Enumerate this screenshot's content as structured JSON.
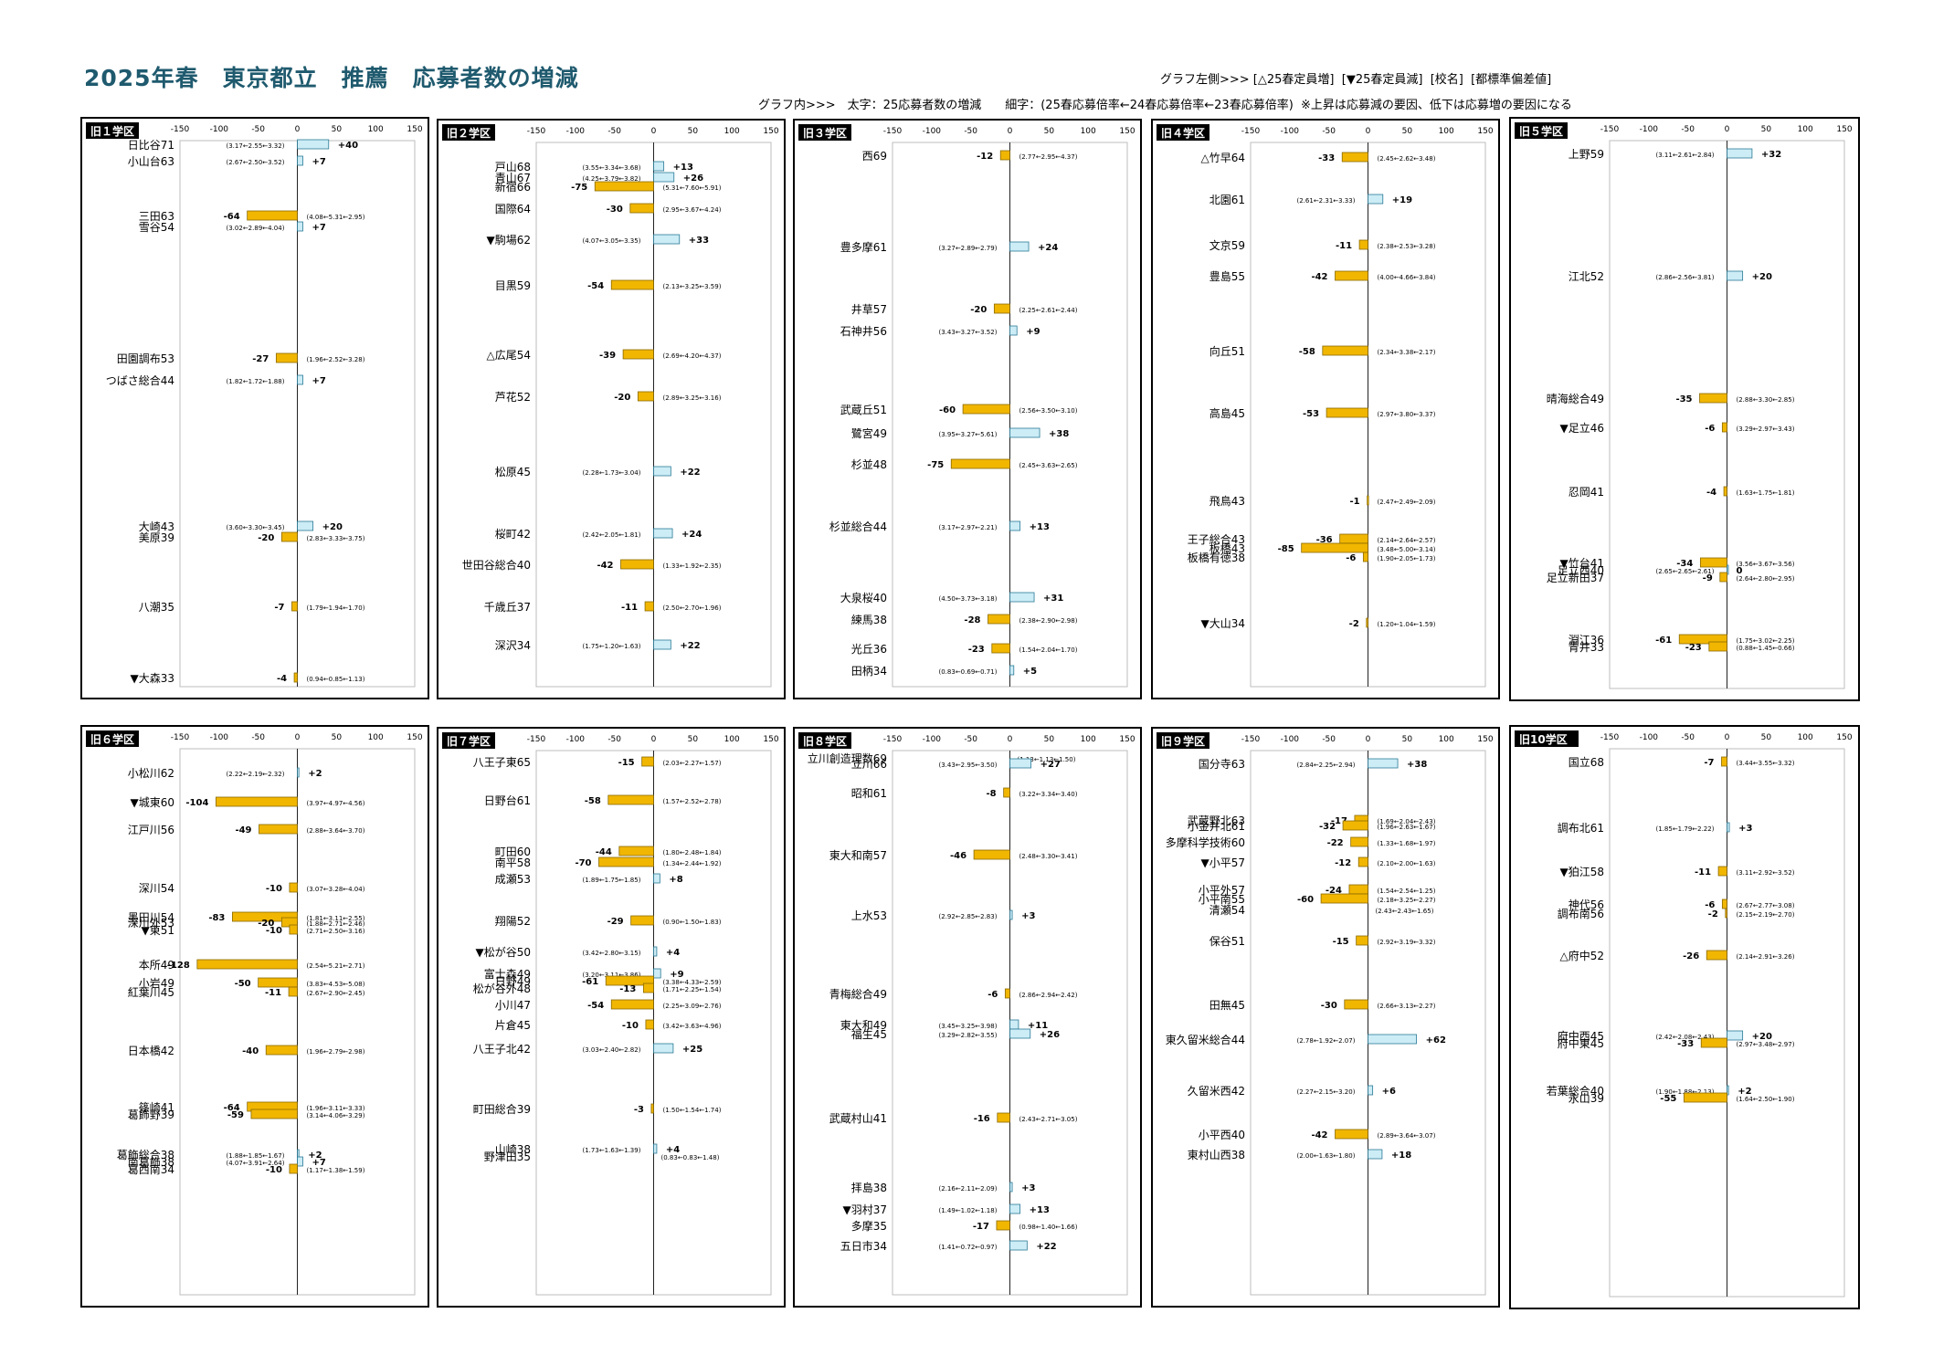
{
  "page": {
    "title": "2025年春　東京都立　推薦　応募者数の増減",
    "legend_line1": "グラフ左側>>> [△25春定員増]  [▼25春定員減]  [校名]  [都標準偏差値]",
    "legend_line2": "グラフ内>>>　太字：25応募者数の増減　　細字：(25春応募倍率←24春応募倍率←23春応募倍率)  ※上昇は応募減の要因、低下は応募増の要因になる"
  },
  "colors": {
    "increase": "#ccecf6",
    "decrease": "#f1b600",
    "border": "#000000"
  },
  "chart_data": {
    "type": "bar",
    "xlim": [
      -150,
      150
    ],
    "ticks": [
      -150,
      -100,
      -50,
      0,
      50,
      100,
      150
    ],
    "panels": [
      {
        "district": "旧１学区",
        "schools": [
          {
            "name": "日比谷71",
            "value": 40,
            "ratio": "(3.17←2.55←3.32)"
          },
          {
            "name": "小山台63",
            "value": 7,
            "ratio": "(2.67←2.50←3.52)"
          },
          {
            "name": "三田63",
            "value": -64,
            "ratio": "(4.08←5.31←2.95)"
          },
          {
            "name": "雪谷54",
            "value": 7,
            "ratio": "(3.02←2.89←4.04)"
          },
          {
            "name": "田園調布53",
            "value": -27,
            "ratio": "(1.96←2.52←3.28)"
          },
          {
            "name": "つばさ総合44",
            "value": 7,
            "ratio": "(1.82←1.72←1.88)"
          },
          {
            "name": "大崎43",
            "value": 20,
            "ratio": "(3.60←3.30←3.45)"
          },
          {
            "name": "美原39",
            "value": -20,
            "ratio": "(2.83←3.33←3.75)"
          },
          {
            "name": "八潮35",
            "value": -7,
            "ratio": "(1.79←1.94←1.70)"
          },
          {
            "name": "▼大森33",
            "value": -4,
            "ratio": "(0.94←0.85←1.13)"
          }
        ]
      },
      {
        "district": "旧２学区",
        "schools": [
          {
            "name": "戸山68",
            "value": 13,
            "ratio": "(3.55←3.34←3.68)"
          },
          {
            "name": "青山67",
            "value": 26,
            "ratio": "(4.25←3.79←3.82)"
          },
          {
            "name": "新宿66",
            "value": -75,
            "ratio": "(5.31←7.60←5.91)"
          },
          {
            "name": "国際64",
            "value": -30,
            "ratio": "(2.95←3.67←4.24)"
          },
          {
            "name": "▼駒場62",
            "value": 33,
            "ratio": "(4.07←3.05←3.35)"
          },
          {
            "name": "目黒59",
            "value": -54,
            "ratio": "(2.13←3.25←3.59)"
          },
          {
            "name": "△広尾54",
            "value": -39,
            "ratio": "(2.69←4.20←4.37)"
          },
          {
            "name": "芦花52",
            "value": -20,
            "ratio": "(2.89←3.25←3.16)"
          },
          {
            "name": "松原45",
            "value": 22,
            "ratio": "(2.28←1.73←3.04)"
          },
          {
            "name": "桜町42",
            "value": 24,
            "ratio": "(2.42←2.05←1.81)"
          },
          {
            "name": "世田谷総合40",
            "value": -42,
            "ratio": "(1.33←1.92←2.35)"
          },
          {
            "name": "千歳丘37",
            "value": -11,
            "ratio": "(2.50←2.70←1.96)"
          },
          {
            "name": "深沢34",
            "value": 22,
            "ratio": "(1.75←1.20←1.63)"
          }
        ]
      },
      {
        "district": "旧３学区",
        "schools": [
          {
            "name": "西69",
            "value": -12,
            "ratio": "(2.77←2.95←4.37)"
          },
          {
            "name": "豊多摩61",
            "value": 24,
            "ratio": "(3.27←2.89←2.79)"
          },
          {
            "name": "井草57",
            "value": -20,
            "ratio": "(2.25←2.61←2.44)"
          },
          {
            "name": "石神井56",
            "value": 9,
            "ratio": "(3.43←3.27←3.52)"
          },
          {
            "name": "武蔵丘51",
            "value": -60,
            "ratio": "(2.56←3.50←3.10)"
          },
          {
            "name": "鷺宮49",
            "value": 38,
            "ratio": "(3.95←3.27←5.61)"
          },
          {
            "name": "杉並48",
            "value": -75,
            "ratio": "(2.45←3.63←2.65)"
          },
          {
            "name": "杉並総合44",
            "value": 13,
            "ratio": "(3.17←2.97←2.21)"
          },
          {
            "name": "大泉桜40",
            "value": 31,
            "ratio": "(4.50←3.73←3.18)"
          },
          {
            "name": "練馬38",
            "value": -28,
            "ratio": "(2.38←2.90←2.98)"
          },
          {
            "name": "光丘36",
            "value": -23,
            "ratio": "(1.54←2.04←1.70)"
          },
          {
            "name": "田柄34",
            "value": 5,
            "ratio": "(0.83←0.69←0.71)"
          }
        ]
      },
      {
        "district": "旧４学区",
        "schools": [
          {
            "name": "△竹早64",
            "value": -33,
            "ratio": "(2.45←2.62←3.48)"
          },
          {
            "name": "北園61",
            "value": 19,
            "ratio": "(2.61←2.31←3.33)"
          },
          {
            "name": "文京59",
            "value": -11,
            "ratio": "(2.38←2.53←3.28)"
          },
          {
            "name": "豊島55",
            "value": -42,
            "ratio": "(4.00←4.66←3.84)"
          },
          {
            "name": "向丘51",
            "value": -58,
            "ratio": "(2.34←3.38←2.17)"
          },
          {
            "name": "高島45",
            "value": -53,
            "ratio": "(2.97←3.80←3.37)"
          },
          {
            "name": "飛鳥43",
            "value": -1,
            "ratio": "(2.47←2.49←2.09)"
          },
          {
            "name": "王子総合43",
            "value": -36,
            "ratio": "(2.14←2.64←2.57)"
          },
          {
            "name": "板橋43",
            "value": -85,
            "ratio": "(3.48←5.00←3.14)"
          },
          {
            "name": "板橋有徳38",
            "value": -6,
            "ratio": "(1.90←2.05←1.73)"
          },
          {
            "name": "▼大山34",
            "value": -2,
            "ratio": "(1.20←1.04←1.59)"
          }
        ]
      },
      {
        "district": "旧５学区",
        "schools": [
          {
            "name": "上野59",
            "value": 32,
            "ratio": "(3.11←2.61←2.84)"
          },
          {
            "name": "江北52",
            "value": 20,
            "ratio": "(2.86←2.56←3.81)"
          },
          {
            "name": "晴海総合49",
            "value": -35,
            "ratio": "(2.88←3.30←2.85)"
          },
          {
            "name": "▼足立46",
            "value": -6,
            "ratio": "(3.29←2.97←3.43)"
          },
          {
            "name": "忍岡41",
            "value": -4,
            "ratio": "(1.63←1.75←1.81)"
          },
          {
            "name": "▼竹台41",
            "value": -34,
            "ratio": "(3.56←3.67←3.56)"
          },
          {
            "name": "足立西40",
            "value": 0,
            "ratio": "(2.65←2.65←2.61)"
          },
          {
            "name": "足立新田37",
            "value": -9,
            "ratio": "(2.64←2.80←2.95)"
          },
          {
            "name": "淵江36",
            "value": -61,
            "ratio": "(1.75←3.02←2.25)"
          },
          {
            "name": "青井33",
            "value": -23,
            "ratio": "(0.88←1.45←0.66)"
          }
        ]
      },
      {
        "district": "旧６学区",
        "schools": [
          {
            "name": "小松川62",
            "value": 2,
            "ratio": "(2.22←2.19←2.32)"
          },
          {
            "name": "▼城東60",
            "value": -104,
            "ratio": "(3.97←4.97←4.56)"
          },
          {
            "name": "江戸川56",
            "value": -49,
            "ratio": "(2.88←3.64←3.70)"
          },
          {
            "name": "深川54",
            "value": -10,
            "ratio": "(3.07←3.28←4.04)"
          },
          {
            "name": "墨田川54",
            "value": -83,
            "ratio": "(1.81←3.11←2.55)"
          },
          {
            "name": "深川外53",
            "value": -20,
            "ratio": "(1.88←2.71←2.46)"
          },
          {
            "name": "▼東51",
            "value": -10,
            "ratio": "(2.71←2.50←3.16)"
          },
          {
            "name": "本所49",
            "value": -128,
            "ratio": "(2.54←5.21←2.71)"
          },
          {
            "name": "小岩49",
            "value": -50,
            "ratio": "(3.83←4.53←5.08)"
          },
          {
            "name": "紅葉川45",
            "value": -11,
            "ratio": "(2.67←2.90←2.45)"
          },
          {
            "name": "日本橋42",
            "value": -40,
            "ratio": "(1.96←2.79←2.98)"
          },
          {
            "name": "篠崎41",
            "value": -64,
            "ratio": "(1.96←3.11←3.33)"
          },
          {
            "name": "葛飾野39",
            "value": -59,
            "ratio": "(3.14←4.06←3.29)"
          },
          {
            "name": "葛飾総合38",
            "value": 2,
            "ratio": "(1.88←1.85←1.67)"
          },
          {
            "name": "南葛飾38",
            "value": 7,
            "ratio": "(4.07←3.91←2.64)"
          },
          {
            "name": "葛西南34",
            "value": -10,
            "ratio": "(1.17←1.38←1.59)"
          }
        ]
      },
      {
        "district": "旧７学区",
        "schools": [
          {
            "name": "八王子東65",
            "value": -15,
            "ratio": "(2.03←2.27←1.57)"
          },
          {
            "name": "日野台61",
            "value": -58,
            "ratio": "(1.57←2.52←2.78)"
          },
          {
            "name": "町田60",
            "value": -44,
            "ratio": "(1.80←2.48←1.84)"
          },
          {
            "name": "南平58",
            "value": -70,
            "ratio": "(1.34←2.44←1.92)"
          },
          {
            "name": "成瀬53",
            "value": 8,
            "ratio": "(1.89←1.75←1.85)"
          },
          {
            "name": "翔陽52",
            "value": -29,
            "ratio": "(0.90←1.50←1.83)"
          },
          {
            "name": "▼松が谷50",
            "value": 4,
            "ratio": "(3.42←2.80←3.15)"
          },
          {
            "name": "富士森49",
            "value": 9,
            "ratio": "(3.20←3.11←3.86)"
          },
          {
            "name": "日野49",
            "value": -61,
            "ratio": "(3.38←4.33←2.59)"
          },
          {
            "name": "松が谷外48",
            "value": -13,
            "ratio": "(1.71←2.25←1.54)"
          },
          {
            "name": "小川47",
            "value": -54,
            "ratio": "(2.25←3.09←2.76)"
          },
          {
            "name": "片倉45",
            "value": -10,
            "ratio": "(3.42←3.63←4.96)"
          },
          {
            "name": "八王子北42",
            "value": 25,
            "ratio": "(3.03←2.40←2.82)"
          },
          {
            "name": "町田総合39",
            "value": -3,
            "ratio": "(1.50←1.54←1.74)"
          },
          {
            "name": "山崎38",
            "value": 4,
            "ratio": "(1.73←1.63←1.39)"
          },
          {
            "name": "野津田35",
            "value": null,
            "ratio": "(0.83←0.83←1.48)"
          }
        ]
      },
      {
        "district": "旧８学区",
        "schools": [
          {
            "name": "立川創造理数69",
            "value": null,
            "ratio": "(1.13←1.13←1.50)"
          },
          {
            "name": "立川66",
            "value": 27,
            "ratio": "(3.43←2.95←3.50)"
          },
          {
            "name": "昭和61",
            "value": -8,
            "ratio": "(3.22←3.34←3.40)"
          },
          {
            "name": "東大和南57",
            "value": -46,
            "ratio": "(2.48←3.30←3.41)"
          },
          {
            "name": "上水53",
            "value": 3,
            "ratio": "(2.92←2.85←2.83)"
          },
          {
            "name": "青梅総合49",
            "value": -6,
            "ratio": "(2.86←2.94←2.42)"
          },
          {
            "name": "東大和49",
            "value": 11,
            "ratio": "(3.45←3.25←3.98)"
          },
          {
            "name": "福生45",
            "value": 26,
            "ratio": "(3.29←2.82←3.55)"
          },
          {
            "name": "武蔵村山41",
            "value": -16,
            "ratio": "(2.43←2.71←3.05)"
          },
          {
            "name": "拝島38",
            "value": 3,
            "ratio": "(2.16←2.11←2.09)"
          },
          {
            "name": "▼羽村37",
            "value": 13,
            "ratio": "(1.49←1.02←1.18)"
          },
          {
            "name": "多摩35",
            "value": -17,
            "ratio": "(0.98←1.40←1.66)"
          },
          {
            "name": "五日市34",
            "value": 22,
            "ratio": "(1.41←0.72←0.97)"
          }
        ]
      },
      {
        "district": "旧９学区",
        "schools": [
          {
            "name": "国分寺63",
            "value": 38,
            "ratio": "(2.84←2.25←2.94)"
          },
          {
            "name": "武蔵野北63",
            "value": -17,
            "ratio": "(1.69←2.04←2.43)"
          },
          {
            "name": "小金井北61",
            "value": -32,
            "ratio": "(1.96←2.63←1.67)"
          },
          {
            "name": "多摩科学技術60",
            "value": -22,
            "ratio": "(1.33←1.68←1.97)"
          },
          {
            "name": "▼小平57",
            "value": -12,
            "ratio": "(2.10←2.00←1.63)"
          },
          {
            "name": "小平外57",
            "value": -24,
            "ratio": "(1.54←2.54←1.25)"
          },
          {
            "name": "小平南55",
            "value": -60,
            "ratio": "(2.18←3.25←2.27)"
          },
          {
            "name": "清瀬54",
            "value": null,
            "ratio": "(2.43←2.43←1.65)"
          },
          {
            "name": "保谷51",
            "value": -15,
            "ratio": "(2.92←3.19←3.32)"
          },
          {
            "name": "田無45",
            "value": -30,
            "ratio": "(2.66←3.13←2.27)"
          },
          {
            "name": "東久留米総合44",
            "value": 62,
            "ratio": "(2.78←1.92←2.07)"
          },
          {
            "name": "久留米西42",
            "value": 6,
            "ratio": "(2.27←2.15←3.20)"
          },
          {
            "name": "小平西40",
            "value": -42,
            "ratio": "(2.89←3.64←3.07)"
          },
          {
            "name": "東村山西38",
            "value": 18,
            "ratio": "(2.00←1.63←1.80)"
          }
        ]
      },
      {
        "district": "旧10学区",
        "schools": [
          {
            "name": "国立68",
            "value": -7,
            "ratio": "(3.44←3.55←3.32)"
          },
          {
            "name": "調布北61",
            "value": 3,
            "ratio": "(1.85←1.79←2.22)"
          },
          {
            "name": "▼狛江58",
            "value": -11,
            "ratio": "(3.11←2.92←3.52)"
          },
          {
            "name": "神代56",
            "value": -6,
            "ratio": "(2.67←2.77←3.08)"
          },
          {
            "name": "調布南56",
            "value": -2,
            "ratio": "(2.15←2.19←2.70)"
          },
          {
            "name": "△府中52",
            "value": -26,
            "ratio": "(2.14←2.91←3.26)"
          },
          {
            "name": "府中西45",
            "value": 20,
            "ratio": "(2.42←2.08←2.43)"
          },
          {
            "name": "府中東45",
            "value": -33,
            "ratio": "(2.97←3.48←2.97)"
          },
          {
            "name": "若葉総合40",
            "value": 2,
            "ratio": "(1.90←1.88←2.13)"
          },
          {
            "name": "永山39",
            "value": -55,
            "ratio": "(1.64←2.50←1.90)"
          }
        ]
      }
    ]
  }
}
